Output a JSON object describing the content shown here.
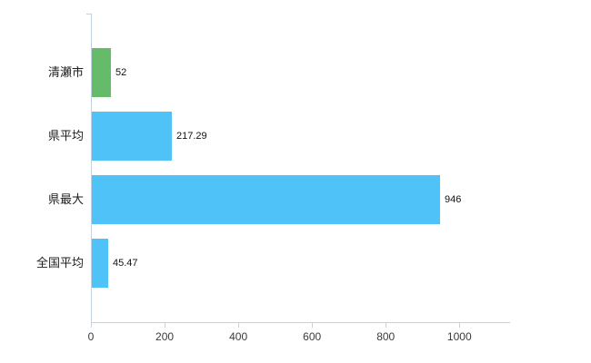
{
  "chart_data": {
    "type": "bar",
    "orientation": "horizontal",
    "title": "",
    "xlabel": "",
    "ylabel": "",
    "grid": false,
    "legend": false,
    "categories": [
      "清瀬市",
      "県平均",
      "県最大",
      "全国平均"
    ],
    "values": [
      52,
      217.29,
      946,
      45.47
    ],
    "value_labels": [
      "52",
      "217.29",
      "946",
      "45.47"
    ],
    "bar_colors": [
      "#66bb6a",
      "#4fc3f7",
      "#4fc3f7",
      "#4fc3f7"
    ],
    "x_ticks": [
      0,
      200,
      400,
      600,
      800,
      1000
    ],
    "xlim": [
      0,
      1135
    ],
    "axis_color": "#c3d0de",
    "tick_label_color": "#3a3a3a",
    "category_label_color": "#1e1e1e",
    "value_label_color": "#111111",
    "background_color": "#ffffff"
  }
}
